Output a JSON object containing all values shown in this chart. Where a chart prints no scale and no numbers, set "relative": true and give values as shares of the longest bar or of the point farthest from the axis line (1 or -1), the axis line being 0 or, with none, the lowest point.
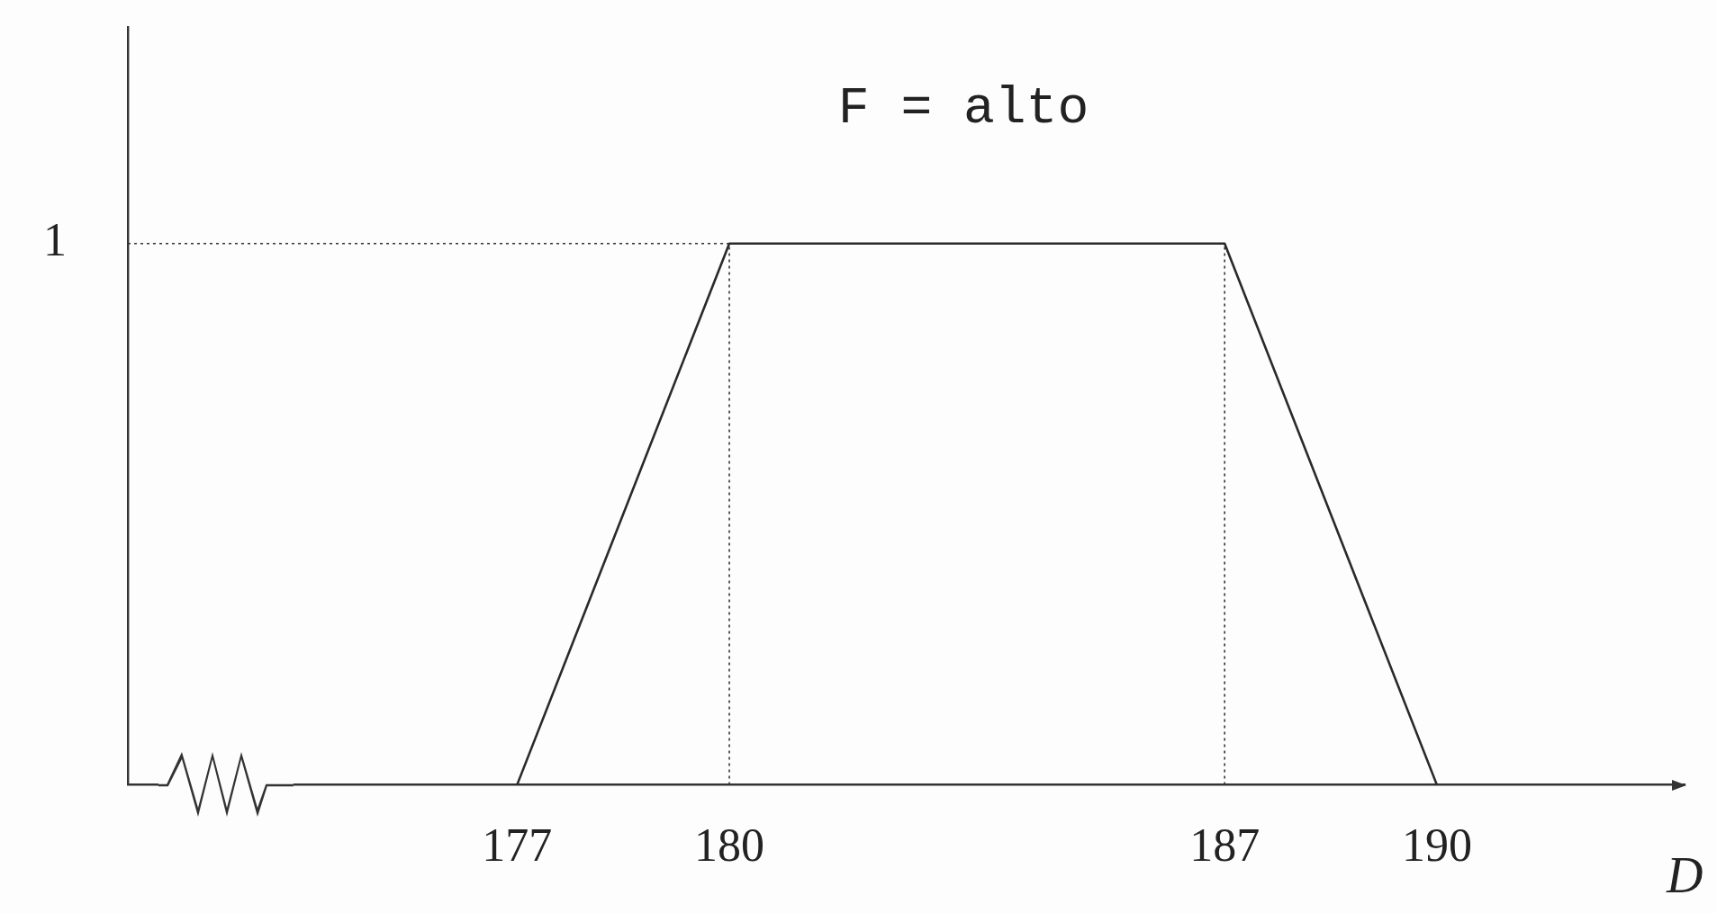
{
  "chart_data": {
    "type": "line",
    "title": "F = alto",
    "xlabel": "D",
    "x": [
      177,
      180,
      187,
      190
    ],
    "values": [
      0,
      1,
      1,
      0
    ],
    "color": "#2a2a2a",
    "relative": true,
    "xlim": [
      171.5,
      193.5
    ],
    "xticks": [
      177,
      180,
      187,
      190
    ],
    "ref_lines": [
      {
        "axis": "y",
        "value": 1,
        "label": "1",
        "line_style": "dotted"
      },
      {
        "axis": "x",
        "value": 180,
        "line_style": "dotted"
      },
      {
        "axis": "x",
        "value": 187,
        "line_style": "dotted"
      }
    ],
    "grid": false,
    "legend": false,
    "marker": "none",
    "line_style": "solid"
  }
}
